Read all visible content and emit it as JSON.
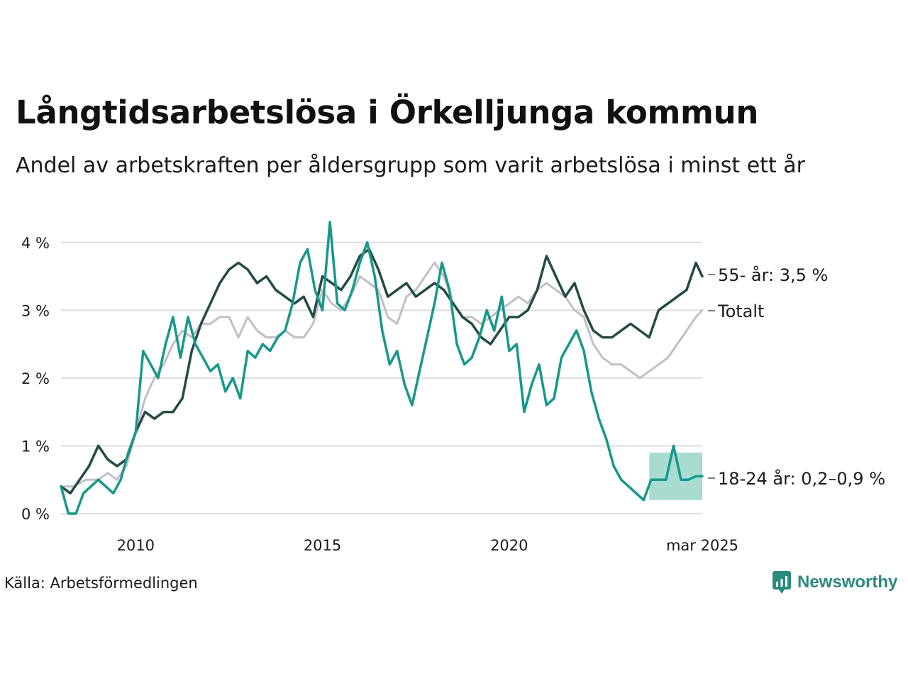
{
  "title": "Långtidsarbetslösa i Örkelljunga kommun",
  "subtitle": "Andel av arbetskraften per åldersgrupp som varit arbetslösa i minst ett år",
  "source": "Källa: Arbetsförmedlingen",
  "brand": {
    "name": "Newsworthy",
    "icon": "newsworthy-logo-icon"
  },
  "colors": {
    "total": "#c2bdc9",
    "age55": "#244a44",
    "age18_24": "#17988a",
    "band": "#8ccfc2",
    "grid": "#dddddd",
    "text": "#1a1a1a"
  },
  "chart_data": {
    "type": "line",
    "x_unit": "year (decimal, monthly data)",
    "xlim": [
      2008.0,
      2025.17
    ],
    "ylim": [
      0,
      4.5
    ],
    "y_ticks": [
      {
        "value": 0,
        "label": "0 %"
      },
      {
        "value": 1,
        "label": "1 %"
      },
      {
        "value": 2,
        "label": "2 %"
      },
      {
        "value": 3,
        "label": "3 %"
      },
      {
        "value": 4,
        "label": "4 %"
      }
    ],
    "x_ticks": [
      {
        "value": 2010,
        "label": "2010"
      },
      {
        "value": 2015,
        "label": "2015"
      },
      {
        "value": 2020,
        "label": "2020"
      },
      {
        "value": 2025.17,
        "label": "mar 2025"
      }
    ],
    "grid": true,
    "series": [
      {
        "key": "total",
        "name": "Totalt",
        "label": "Totalt",
        "points": [
          [
            2008.0,
            0.4
          ],
          [
            2008.33,
            0.4
          ],
          [
            2008.67,
            0.5
          ],
          [
            2009.0,
            0.5
          ],
          [
            2009.25,
            0.6
          ],
          [
            2009.5,
            0.5
          ],
          [
            2009.75,
            0.7
          ],
          [
            2010.0,
            1.2
          ],
          [
            2010.25,
            1.7
          ],
          [
            2010.5,
            2.0
          ],
          [
            2010.75,
            2.2
          ],
          [
            2011.0,
            2.5
          ],
          [
            2011.25,
            2.7
          ],
          [
            2011.5,
            2.6
          ],
          [
            2011.75,
            2.8
          ],
          [
            2012.0,
            2.8
          ],
          [
            2012.25,
            2.9
          ],
          [
            2012.5,
            2.9
          ],
          [
            2012.75,
            2.6
          ],
          [
            2013.0,
            2.9
          ],
          [
            2013.25,
            2.7
          ],
          [
            2013.5,
            2.6
          ],
          [
            2013.75,
            2.6
          ],
          [
            2014.0,
            2.7
          ],
          [
            2014.25,
            2.6
          ],
          [
            2014.5,
            2.6
          ],
          [
            2014.75,
            2.8
          ],
          [
            2015.0,
            3.3
          ],
          [
            2015.25,
            3.1
          ],
          [
            2015.5,
            3.0
          ],
          [
            2015.75,
            3.2
          ],
          [
            2016.0,
            3.5
          ],
          [
            2016.25,
            3.4
          ],
          [
            2016.5,
            3.3
          ],
          [
            2016.75,
            2.9
          ],
          [
            2017.0,
            2.8
          ],
          [
            2017.25,
            3.2
          ],
          [
            2017.5,
            3.3
          ],
          [
            2017.75,
            3.5
          ],
          [
            2018.0,
            3.7
          ],
          [
            2018.25,
            3.5
          ],
          [
            2018.5,
            3.1
          ],
          [
            2018.75,
            2.9
          ],
          [
            2019.0,
            2.9
          ],
          [
            2019.25,
            2.8
          ],
          [
            2019.5,
            2.9
          ],
          [
            2019.75,
            3.0
          ],
          [
            2020.0,
            3.1
          ],
          [
            2020.25,
            3.2
          ],
          [
            2020.5,
            3.1
          ],
          [
            2020.75,
            3.3
          ],
          [
            2021.0,
            3.4
          ],
          [
            2021.25,
            3.3
          ],
          [
            2021.5,
            3.2
          ],
          [
            2021.75,
            3.0
          ],
          [
            2022.0,
            2.9
          ],
          [
            2022.25,
            2.5
          ],
          [
            2022.5,
            2.3
          ],
          [
            2022.75,
            2.2
          ],
          [
            2023.0,
            2.2
          ],
          [
            2023.25,
            2.1
          ],
          [
            2023.5,
            2.0
          ],
          [
            2023.75,
            2.1
          ],
          [
            2024.0,
            2.2
          ],
          [
            2024.25,
            2.3
          ],
          [
            2024.5,
            2.5
          ],
          [
            2024.75,
            2.7
          ],
          [
            2025.0,
            2.9
          ],
          [
            2025.17,
            3.0
          ]
        ]
      },
      {
        "key": "age55",
        "name": "55- år",
        "label": "55- år: 3,5 %",
        "points": [
          [
            2008.0,
            0.4
          ],
          [
            2008.25,
            0.3
          ],
          [
            2008.5,
            0.5
          ],
          [
            2008.75,
            0.7
          ],
          [
            2009.0,
            1.0
          ],
          [
            2009.25,
            0.8
          ],
          [
            2009.5,
            0.7
          ],
          [
            2009.75,
            0.8
          ],
          [
            2010.0,
            1.2
          ],
          [
            2010.25,
            1.5
          ],
          [
            2010.5,
            1.4
          ],
          [
            2010.75,
            1.5
          ],
          [
            2011.0,
            1.5
          ],
          [
            2011.25,
            1.7
          ],
          [
            2011.5,
            2.4
          ],
          [
            2011.75,
            2.8
          ],
          [
            2012.0,
            3.1
          ],
          [
            2012.25,
            3.4
          ],
          [
            2012.5,
            3.6
          ],
          [
            2012.75,
            3.7
          ],
          [
            2013.0,
            3.6
          ],
          [
            2013.25,
            3.4
          ],
          [
            2013.5,
            3.5
          ],
          [
            2013.75,
            3.3
          ],
          [
            2014.0,
            3.2
          ],
          [
            2014.25,
            3.1
          ],
          [
            2014.5,
            3.2
          ],
          [
            2014.75,
            2.9
          ],
          [
            2015.0,
            3.5
          ],
          [
            2015.25,
            3.4
          ],
          [
            2015.5,
            3.3
          ],
          [
            2015.75,
            3.5
          ],
          [
            2016.0,
            3.8
          ],
          [
            2016.25,
            3.9
          ],
          [
            2016.5,
            3.6
          ],
          [
            2016.75,
            3.2
          ],
          [
            2017.0,
            3.3
          ],
          [
            2017.25,
            3.4
          ],
          [
            2017.5,
            3.2
          ],
          [
            2017.75,
            3.3
          ],
          [
            2018.0,
            3.4
          ],
          [
            2018.25,
            3.3
          ],
          [
            2018.5,
            3.1
          ],
          [
            2018.75,
            2.9
          ],
          [
            2019.0,
            2.8
          ],
          [
            2019.25,
            2.6
          ],
          [
            2019.5,
            2.5
          ],
          [
            2019.75,
            2.7
          ],
          [
            2020.0,
            2.9
          ],
          [
            2020.25,
            2.9
          ],
          [
            2020.5,
            3.0
          ],
          [
            2020.75,
            3.3
          ],
          [
            2021.0,
            3.8
          ],
          [
            2021.25,
            3.5
          ],
          [
            2021.5,
            3.2
          ],
          [
            2021.75,
            3.4
          ],
          [
            2022.0,
            3.0
          ],
          [
            2022.25,
            2.7
          ],
          [
            2022.5,
            2.6
          ],
          [
            2022.75,
            2.6
          ],
          [
            2023.0,
            2.7
          ],
          [
            2023.25,
            2.8
          ],
          [
            2023.5,
            2.7
          ],
          [
            2023.75,
            2.6
          ],
          [
            2024.0,
            3.0
          ],
          [
            2024.25,
            3.1
          ],
          [
            2024.5,
            3.2
          ],
          [
            2024.75,
            3.3
          ],
          [
            2025.0,
            3.7
          ],
          [
            2025.17,
            3.5
          ]
        ]
      },
      {
        "key": "age18_24",
        "name": "18-24 år",
        "label": "18-24 år: 0,2–0,9 %",
        "points": [
          [
            2008.0,
            0.4
          ],
          [
            2008.2,
            0.0
          ],
          [
            2008.4,
            0.0
          ],
          [
            2008.6,
            0.3
          ],
          [
            2008.8,
            0.4
          ],
          [
            2009.0,
            0.5
          ],
          [
            2009.2,
            0.4
          ],
          [
            2009.4,
            0.3
          ],
          [
            2009.6,
            0.5
          ],
          [
            2009.8,
            0.9
          ],
          [
            2010.0,
            1.2
          ],
          [
            2010.2,
            2.4
          ],
          [
            2010.4,
            2.2
          ],
          [
            2010.6,
            2.0
          ],
          [
            2010.8,
            2.5
          ],
          [
            2011.0,
            2.9
          ],
          [
            2011.2,
            2.3
          ],
          [
            2011.4,
            2.9
          ],
          [
            2011.6,
            2.5
          ],
          [
            2011.8,
            2.3
          ],
          [
            2012.0,
            2.1
          ],
          [
            2012.2,
            2.2
          ],
          [
            2012.4,
            1.8
          ],
          [
            2012.6,
            2.0
          ],
          [
            2012.8,
            1.7
          ],
          [
            2013.0,
            2.4
          ],
          [
            2013.2,
            2.3
          ],
          [
            2013.4,
            2.5
          ],
          [
            2013.6,
            2.4
          ],
          [
            2013.8,
            2.6
          ],
          [
            2014.0,
            2.7
          ],
          [
            2014.2,
            3.1
          ],
          [
            2014.4,
            3.7
          ],
          [
            2014.6,
            3.9
          ],
          [
            2014.8,
            3.3
          ],
          [
            2015.0,
            3.0
          ],
          [
            2015.2,
            4.3
          ],
          [
            2015.4,
            3.1
          ],
          [
            2015.6,
            3.0
          ],
          [
            2015.8,
            3.3
          ],
          [
            2016.0,
            3.7
          ],
          [
            2016.2,
            4.0
          ],
          [
            2016.4,
            3.5
          ],
          [
            2016.6,
            2.7
          ],
          [
            2016.8,
            2.2
          ],
          [
            2017.0,
            2.4
          ],
          [
            2017.2,
            1.9
          ],
          [
            2017.4,
            1.6
          ],
          [
            2017.6,
            2.1
          ],
          [
            2017.8,
            2.6
          ],
          [
            2018.0,
            3.1
          ],
          [
            2018.2,
            3.7
          ],
          [
            2018.4,
            3.3
          ],
          [
            2018.6,
            2.5
          ],
          [
            2018.8,
            2.2
          ],
          [
            2019.0,
            2.3
          ],
          [
            2019.2,
            2.6
          ],
          [
            2019.4,
            3.0
          ],
          [
            2019.6,
            2.7
          ],
          [
            2019.8,
            3.2
          ],
          [
            2020.0,
            2.4
          ],
          [
            2020.2,
            2.5
          ],
          [
            2020.4,
            1.5
          ],
          [
            2020.6,
            1.9
          ],
          [
            2020.8,
            2.2
          ],
          [
            2021.0,
            1.6
          ],
          [
            2021.2,
            1.7
          ],
          [
            2021.4,
            2.3
          ],
          [
            2021.6,
            2.5
          ],
          [
            2021.8,
            2.7
          ],
          [
            2022.0,
            2.4
          ],
          [
            2022.2,
            1.8
          ],
          [
            2022.4,
            1.4
          ],
          [
            2022.6,
            1.1
          ],
          [
            2022.8,
            0.7
          ],
          [
            2023.0,
            0.5
          ],
          [
            2023.2,
            0.4
          ],
          [
            2023.4,
            0.3
          ],
          [
            2023.6,
            0.2
          ],
          [
            2023.8,
            0.5
          ],
          [
            2024.0,
            0.5
          ],
          [
            2024.2,
            0.5
          ],
          [
            2024.4,
            1.0
          ],
          [
            2024.6,
            0.5
          ],
          [
            2024.8,
            0.5
          ],
          [
            2025.0,
            0.55
          ],
          [
            2025.17,
            0.55
          ]
        ]
      }
    ],
    "uncertainty_band": {
      "series": "age18_24",
      "x_start": 2023.75,
      "x_end": 2025.17,
      "low": 0.2,
      "high": 0.9
    }
  }
}
